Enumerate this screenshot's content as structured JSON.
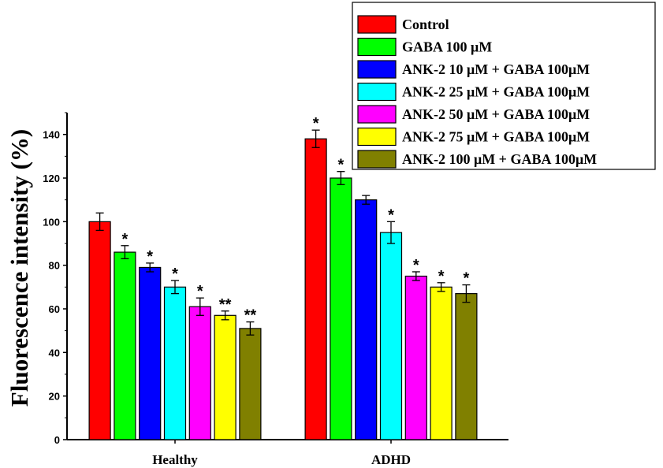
{
  "chart_data": {
    "type": "bar",
    "title": "",
    "xlabel": "",
    "ylabel": "Fluorescence intensity (%)",
    "ylim": [
      0,
      150
    ],
    "yticks": [
      0,
      20,
      40,
      60,
      80,
      100,
      120,
      140
    ],
    "grid": false,
    "legend_position": "top-right",
    "categories": [
      "Healthy",
      "ADHD"
    ],
    "series": [
      {
        "name": "Control",
        "color": "#ff0000",
        "values": [
          100,
          138
        ],
        "errors": [
          4,
          4
        ],
        "annotations": [
          "",
          "*"
        ]
      },
      {
        "name": "GABA 100 μM",
        "color": "#00ff00",
        "values": [
          86,
          120
        ],
        "errors": [
          3,
          3
        ],
        "annotations": [
          "*",
          "*"
        ]
      },
      {
        "name": "ANK-2 10 μM + GABA 100μM",
        "color": "#0000ff",
        "values": [
          79,
          110
        ],
        "errors": [
          2,
          2
        ],
        "annotations": [
          "*",
          ""
        ]
      },
      {
        "name": "ANK-2 25 μM + GABA 100μM",
        "color": "#00ffff",
        "values": [
          70,
          95
        ],
        "errors": [
          3,
          5
        ],
        "annotations": [
          "*",
          "*"
        ]
      },
      {
        "name": "ANK-2 50 μM + GABA 100μM",
        "color": "#ff00ff",
        "values": [
          61,
          75
        ],
        "errors": [
          4,
          2
        ],
        "annotations": [
          "*",
          "*"
        ]
      },
      {
        "name": "ANK-2 75 μM + GABA 100μM",
        "color": "#ffff00",
        "values": [
          57,
          70
        ],
        "errors": [
          2,
          2
        ],
        "annotations": [
          "**",
          "*"
        ]
      },
      {
        "name": "ANK-2 100 μM + GABA 100μM",
        "color": "#808000",
        "values": [
          51,
          67
        ],
        "errors": [
          3,
          4
        ],
        "annotations": [
          "**",
          "*"
        ]
      }
    ]
  }
}
